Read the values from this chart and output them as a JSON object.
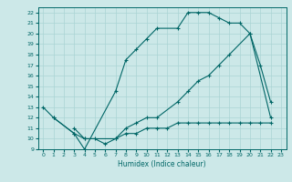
{
  "title": "",
  "xlabel": "Humidex (Indice chaleur)",
  "bg_color": "#cce8e8",
  "line_color": "#006666",
  "grid_color": "#aad4d4",
  "ylim": [
    9,
    22.5
  ],
  "xlim": [
    -0.5,
    23.5
  ],
  "yticks": [
    9,
    10,
    11,
    12,
    13,
    14,
    15,
    16,
    17,
    18,
    19,
    20,
    21,
    22
  ],
  "xticks": [
    0,
    1,
    2,
    3,
    4,
    5,
    6,
    7,
    8,
    9,
    10,
    11,
    12,
    13,
    14,
    15,
    16,
    17,
    18,
    19,
    20,
    21,
    22,
    23
  ],
  "line1_x": [
    0,
    1,
    3,
    4,
    7,
    8,
    9,
    10,
    11,
    13,
    14,
    15,
    16,
    17,
    18,
    19,
    20,
    21,
    22
  ],
  "line1_y": [
    13,
    12,
    10.5,
    9,
    14.5,
    17.5,
    18.5,
    19.5,
    20.5,
    20.5,
    22,
    22,
    22,
    21.5,
    21,
    21,
    20,
    17,
    13.5
  ],
  "line2_x": [
    1,
    3,
    4,
    7,
    8,
    9,
    10,
    11,
    13,
    14,
    15,
    16,
    17,
    18,
    20,
    22
  ],
  "line2_y": [
    12,
    10.5,
    10,
    10,
    11,
    11.5,
    12,
    12,
    13.5,
    14.5,
    15.5,
    16,
    17,
    18,
    20,
    12
  ],
  "line3_x": [
    3,
    4,
    5,
    6,
    7,
    8,
    9,
    10,
    11,
    12,
    13,
    14,
    15,
    16,
    17,
    18,
    19,
    20,
    21,
    22
  ],
  "line3_y": [
    11,
    10,
    10,
    9.5,
    10,
    10.5,
    10.5,
    11,
    11,
    11,
    11.5,
    11.5,
    11.5,
    11.5,
    11.5,
    11.5,
    11.5,
    11.5,
    11.5,
    11.5
  ]
}
